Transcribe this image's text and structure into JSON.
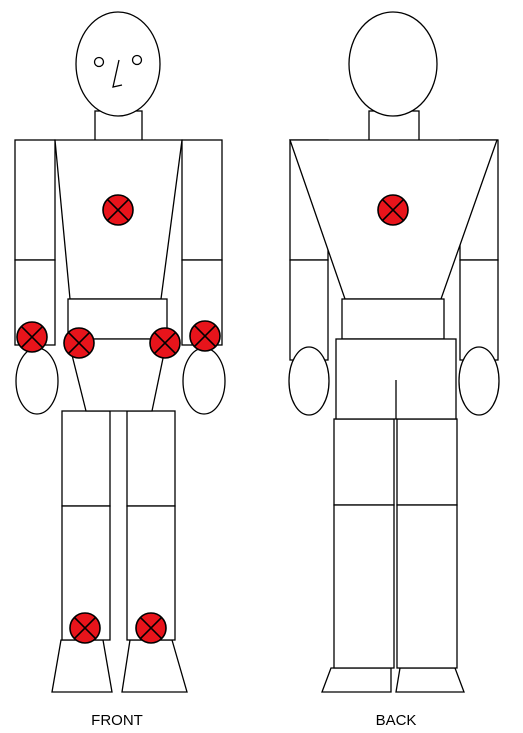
{
  "labels": {
    "front": "FRONT",
    "back": "BACK"
  },
  "colors": {
    "marker_fill": "#e8141b",
    "marker_stroke": "#000000",
    "outline": "#000000",
    "background": "#ffffff"
  },
  "markers": {
    "front": [
      "chest",
      "left-wrist",
      "left-hip",
      "right-hip",
      "right-wrist",
      "left-ankle",
      "right-ankle"
    ],
    "back": [
      "upper-back"
    ]
  }
}
